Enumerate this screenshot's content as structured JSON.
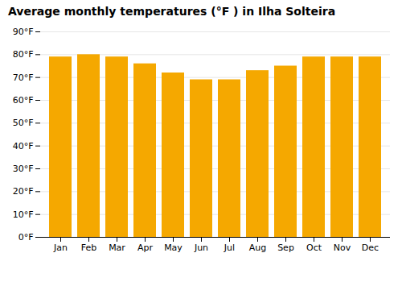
{
  "chart_data": {
    "type": "bar",
    "title": "Average monthly temperatures (°F ) in Ilha Solteira",
    "categories": [
      "Jan",
      "Feb",
      "Mar",
      "Apr",
      "May",
      "Jun",
      "Jul",
      "Aug",
      "Sep",
      "Oct",
      "Nov",
      "Dec"
    ],
    "values": [
      79,
      80,
      79,
      76,
      72,
      69,
      69,
      73,
      75,
      79,
      79,
      79
    ],
    "color": "#F5A800",
    "ylim": [
      0,
      90
    ],
    "yticks": [
      {
        "value": 0,
        "label": "0°F"
      },
      {
        "value": 10,
        "label": "10°F"
      },
      {
        "value": 20,
        "label": "20°F"
      },
      {
        "value": 30,
        "label": "30°F"
      },
      {
        "value": 40,
        "label": "40°F"
      },
      {
        "value": 50,
        "label": "50°F"
      },
      {
        "value": 60,
        "label": "60°F"
      },
      {
        "value": 70,
        "label": "70°F"
      },
      {
        "value": 80,
        "label": "80°F"
      },
      {
        "value": 90,
        "label": "90°F"
      }
    ],
    "grid": true
  }
}
